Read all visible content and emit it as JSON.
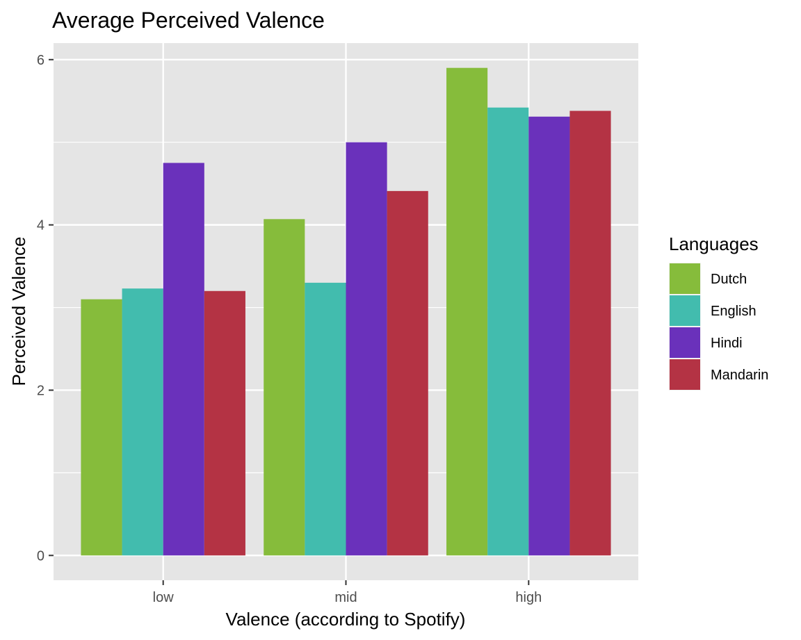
{
  "chart_data": {
    "type": "bar",
    "title": "Average Perceived Valence",
    "xlabel": "Valence (according to Spotify)",
    "ylabel": "Perceived Valence",
    "categories": [
      "low",
      "mid",
      "high"
    ],
    "ylim": [
      -0.3,
      6.2
    ],
    "yticks": [
      0,
      2,
      4,
      6
    ],
    "grid": true,
    "legend_title": "Languages",
    "legend_position": "right",
    "series": [
      {
        "name": "Dutch",
        "color": "#86bc3b",
        "values": [
          3.1,
          4.07,
          5.9
        ]
      },
      {
        "name": "English",
        "color": "#42bcae",
        "values": [
          3.23,
          3.3,
          5.42
        ]
      },
      {
        "name": "Hindi",
        "color": "#6a31bb",
        "values": [
          4.75,
          5.0,
          5.31
        ]
      },
      {
        "name": "Mandarin",
        "color": "#b43344",
        "values": [
          3.2,
          4.41,
          5.38
        ]
      }
    ]
  }
}
